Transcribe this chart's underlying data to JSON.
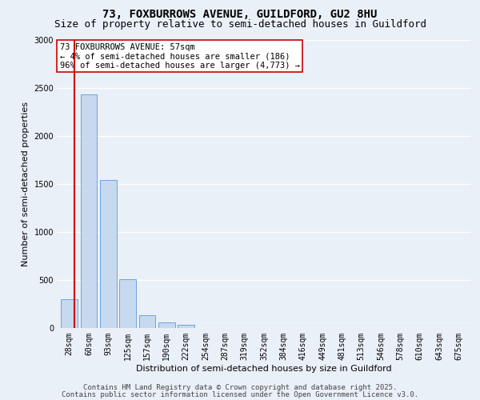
{
  "title_line1": "73, FOXBURROWS AVENUE, GUILDFORD, GU2 8HU",
  "title_line2": "Size of property relative to semi-detached houses in Guildford",
  "xlabel": "Distribution of semi-detached houses by size in Guildford",
  "ylabel": "Number of semi-detached properties",
  "categories": [
    "28sqm",
    "60sqm",
    "93sqm",
    "125sqm",
    "157sqm",
    "190sqm",
    "222sqm",
    "254sqm",
    "287sqm",
    "319sqm",
    "352sqm",
    "384sqm",
    "416sqm",
    "449sqm",
    "481sqm",
    "513sqm",
    "546sqm",
    "578sqm",
    "610sqm",
    "643sqm",
    "675sqm"
  ],
  "values": [
    300,
    2430,
    1540,
    510,
    130,
    60,
    35,
    0,
    0,
    0,
    0,
    0,
    0,
    0,
    0,
    0,
    0,
    0,
    0,
    0,
    0
  ],
  "bar_color": "#c7d9ef",
  "bar_edge_color": "#5b9bd5",
  "vline_color": "#cc0000",
  "vline_x": 0.28,
  "ylim": [
    0,
    3000
  ],
  "yticks": [
    0,
    500,
    1000,
    1500,
    2000,
    2500,
    3000
  ],
  "annotation_text": "73 FOXBURROWS AVENUE: 57sqm\n← 4% of semi-detached houses are smaller (186)\n96% of semi-detached houses are larger (4,773) →",
  "annotation_box_color": "#ffffff",
  "annotation_box_edge": "#cc0000",
  "footer_line1": "Contains HM Land Registry data © Crown copyright and database right 2025.",
  "footer_line2": "Contains public sector information licensed under the Open Government Licence v3.0.",
  "bg_color": "#eaf0f8",
  "plot_bg_color": "#eaf0f8",
  "grid_color": "#ffffff",
  "title_fontsize": 10,
  "subtitle_fontsize": 9,
  "tick_fontsize": 7,
  "ylabel_fontsize": 8,
  "xlabel_fontsize": 8,
  "annotation_fontsize": 7.5,
  "footer_fontsize": 6.5
}
